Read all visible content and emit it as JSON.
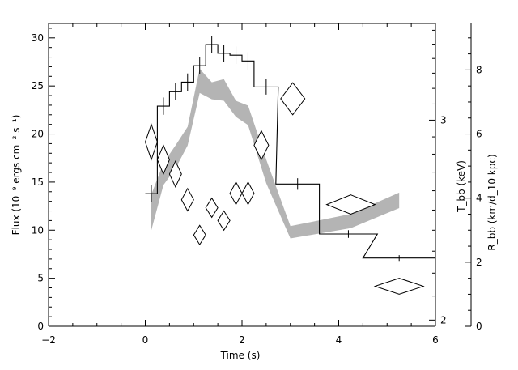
{
  "chart_data": {
    "type": "line",
    "title": "",
    "xlabel": "Time (s)",
    "ylabel_left": "Flux (10⁻⁹ ergs cm⁻² s⁻¹)",
    "ylabel_right_1": "T_bb (keV)",
    "ylabel_right_2": "R_bb (km/d_10 kpc)",
    "xlim": [
      -2,
      6
    ],
    "ylim_left": [
      0,
      31.5
    ],
    "ylim_right_2": [
      0,
      9.45
    ],
    "ylim_right_1_log": [
      1.975,
      3.65
    ],
    "x_ticks": [
      -2,
      0,
      2,
      4,
      6
    ],
    "x_tick_labels": [
      "−2",
      "0",
      "2",
      "4",
      "6"
    ],
    "y_left_ticks": [
      0,
      5,
      10,
      15,
      20,
      25,
      30
    ],
    "y_right_2_ticks": [
      0,
      2,
      4,
      6,
      8
    ],
    "y_right_1_ticks": [
      2,
      3
    ],
    "series": [
      {
        "kind": "flux-step",
        "points": [
          {
            "t": 0.125,
            "dt": 0.125,
            "y": 13.8,
            "dy": 0.9
          },
          {
            "t": 0.375,
            "dt": 0.125,
            "y": 22.9,
            "dy": 0.9
          },
          {
            "t": 0.625,
            "dt": 0.125,
            "y": 24.4,
            "dy": 0.9
          },
          {
            "t": 0.875,
            "dt": 0.125,
            "y": 25.4,
            "dy": 0.9
          },
          {
            "t": 1.125,
            "dt": 0.125,
            "y": 27.1,
            "dy": 0.9
          },
          {
            "t": 1.375,
            "dt": 0.125,
            "y": 29.3,
            "dy": 0.9
          },
          {
            "t": 1.625,
            "dt": 0.125,
            "y": 28.4,
            "dy": 0.9
          },
          {
            "t": 1.875,
            "dt": 0.125,
            "y": 28.2,
            "dy": 0.9
          },
          {
            "t": 2.125,
            "dt": 0.125,
            "y": 27.6,
            "dy": 0.9
          },
          {
            "t": 2.5,
            "dt": 0.25,
            "y": 24.9,
            "dy": 0.8
          },
          {
            "t": 3.15,
            "dt": 0.45,
            "y": 14.8,
            "dy": 0.6
          },
          {
            "t": 4.2,
            "dt": 0.6,
            "y": 9.6,
            "dy": 0.4
          },
          {
            "t": 5.25,
            "dt": 0.75,
            "y": 7.1,
            "dy": 0.3
          }
        ]
      },
      {
        "kind": "kT-band",
        "t": [
          0.125,
          0.375,
          0.625,
          0.875,
          1.125,
          1.375,
          1.625,
          1.875,
          2.125,
          2.5,
          3.0,
          4.25,
          5.25
        ],
        "kT_low": [
          2.4,
          2.63,
          2.72,
          2.85,
          3.17,
          3.13,
          3.12,
          3.02,
          2.97,
          2.64,
          2.36,
          2.41,
          2.51
        ],
        "kT_high": [
          2.58,
          2.75,
          2.85,
          2.96,
          3.33,
          3.24,
          3.26,
          3.12,
          3.09,
          2.77,
          2.42,
          2.48,
          2.59
        ]
      },
      {
        "kind": "radius-diamonds",
        "points": [
          {
            "t": 0.125,
            "dt": 0.125,
            "r": 5.75,
            "dr": 0.55
          },
          {
            "t": 0.375,
            "dt": 0.125,
            "r": 5.2,
            "dr": 0.45
          },
          {
            "t": 0.625,
            "dt": 0.125,
            "r": 4.75,
            "dr": 0.4
          },
          {
            "t": 0.875,
            "dt": 0.125,
            "r": 3.95,
            "dr": 0.35
          },
          {
            "t": 1.125,
            "dt": 0.125,
            "r": 2.85,
            "dr": 0.3
          },
          {
            "t": 1.375,
            "dt": 0.125,
            "r": 3.7,
            "dr": 0.3
          },
          {
            "t": 1.625,
            "dt": 0.125,
            "r": 3.3,
            "dr": 0.3
          },
          {
            "t": 1.875,
            "dt": 0.125,
            "r": 4.15,
            "dr": 0.35
          },
          {
            "t": 2.125,
            "dt": 0.125,
            "r": 4.15,
            "dr": 0.35
          },
          {
            "t": 2.4,
            "dt": 0.15,
            "r": 5.65,
            "dr": 0.45
          },
          {
            "t": 3.05,
            "dt": 0.25,
            "r": 7.1,
            "dr": 0.5
          },
          {
            "t": 4.25,
            "dt": 0.5,
            "r": 3.8,
            "dr": 0.3
          },
          {
            "t": 5.25,
            "dt": 0.5,
            "r": 1.25,
            "dr": 0.25
          }
        ]
      }
    ],
    "grid": false,
    "legend": "none"
  }
}
